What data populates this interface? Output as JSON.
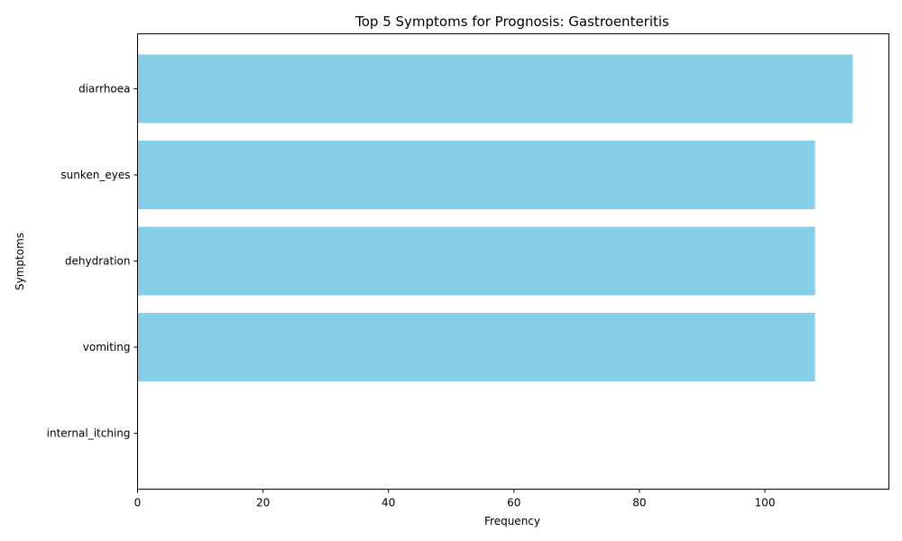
{
  "chart_data": {
    "type": "bar",
    "orientation": "horizontal",
    "title": "Top 5 Symptoms for Prognosis: Gastroenteritis",
    "xlabel": "Frequency",
    "ylabel": "Symptoms",
    "categories": [
      "diarrhoea",
      "sunken_eyes",
      "dehydration",
      "vomiting",
      "internal_itching"
    ],
    "values": [
      114,
      108,
      108,
      108,
      0
    ],
    "xlim": [
      0,
      120
    ],
    "xticks": [
      0,
      20,
      40,
      60,
      80,
      100
    ],
    "bar_color": "#87CEEB",
    "grid": false
  }
}
